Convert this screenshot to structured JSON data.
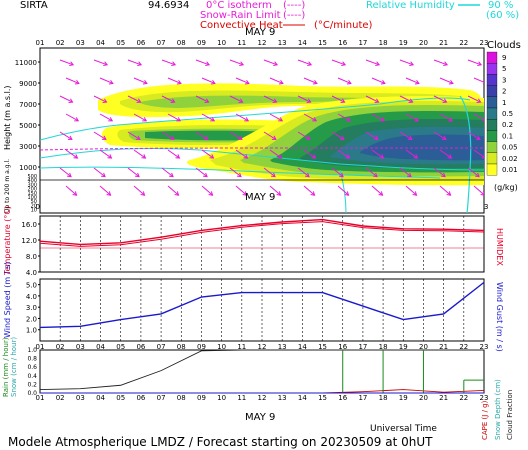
{
  "header": {
    "site": "SIRTA",
    "coord": "94.6934",
    "legend_isotherm": "0°C isotherm",
    "legend_isotherm_sym": "(----)",
    "legend_snow": "Snow-Rain Limit",
    "legend_snow_sym": "(----)",
    "legend_conv": "Convective Heat",
    "legend_conv_sym": "(°C/minute)",
    "legend_rh": "Relative Humidity",
    "legend_rh_90": "90 %",
    "legend_rh_60": "(60 %)"
  },
  "hours": [
    "01",
    "02",
    "03",
    "04",
    "05",
    "06",
    "07",
    "08",
    "09",
    "10",
    "11",
    "12",
    "13",
    "14",
    "15",
    "16",
    "17",
    "18",
    "19",
    "20",
    "21",
    "22",
    "23"
  ],
  "date_label": "MAY 9",
  "footer": {
    "time_axis": "Universal Time",
    "title": "Modele Atmospherique LMDZ / Forecast starting on 20230509 at 0hUT"
  },
  "colors": {
    "temperature": "#e8002a",
    "humidex": "#e8002a",
    "wind": "#1a1acc",
    "rain": "#1a8a1a",
    "snow": "#2aa7a7",
    "cloud_fraction": "#222222",
    "cape": "#cc0000",
    "snow_depth": "#2aa7a7",
    "humidity": "#21d7d7",
    "isotherm": "#e81bd9"
  },
  "colorbar": {
    "title": "Clouds",
    "unit": "(g/kg)",
    "levels": [
      "9",
      "5",
      "3",
      "2",
      "1",
      "0.5",
      "0.2",
      "0.1",
      "0.05",
      "0.02",
      "0.01"
    ],
    "colors": [
      "#dd11dd",
      "#9a33ee",
      "#5533cc",
      "#3b3fa8",
      "#2b5e96",
      "#2a7a8a",
      "#237d5e",
      "#259a49",
      "#8fd23b",
      "#d8ea20",
      "#ffff22"
    ]
  },
  "chart_data": [
    {
      "type": "heatmap",
      "title": "Clouds",
      "ylabel": "Height (m a.s.l.)",
      "ylabel2": "Up to 200 m a.g.l.",
      "y_ticks_upper": [
        "11000",
        "9000",
        "7000",
        "5000",
        "3000",
        "1000"
      ],
      "y_ticks_lower": [
        "500",
        "400",
        "300",
        "200",
        "150",
        "100",
        "50",
        "20",
        "10"
      ],
      "x": "hours",
      "cloud_layers": [
        {
          "name": "mid-level layer",
          "x_start": 4,
          "x_end": 22,
          "base_m": 3500,
          "top_m": 8500,
          "max_level_gkg": 0.5
        },
        {
          "name": "low-level layer",
          "x_start": 8,
          "x_end": 23,
          "base_m": 500,
          "top_m": 4500,
          "max_level_gkg": 2
        }
      ],
      "isotherm_0C_m": 2800
    },
    {
      "type": "line",
      "ylabel": "Temperature (°C)",
      "ylabel_right": "HUMIDEX",
      "y_ticks": [
        "16.0",
        "12.0",
        "8.0",
        "4.0"
      ],
      "ylim": [
        4,
        18
      ],
      "x": [
        1,
        3,
        5,
        7,
        9,
        11,
        13,
        15,
        17,
        19,
        21,
        23
      ],
      "series": [
        {
          "name": "Temperature",
          "values": [
            11.7,
            10.9,
            11.3,
            12.7,
            14.4,
            15.6,
            16.5,
            17.1,
            15.5,
            14.8,
            14.7,
            14.4
          ]
        },
        {
          "name": "HUMIDEX",
          "values": [
            11.2,
            10.4,
            10.8,
            12.2,
            13.9,
            15.2,
            16.1,
            16.6,
            15.1,
            14.4,
            14.3,
            14.0
          ]
        }
      ],
      "reference_line": 10
    },
    {
      "type": "line",
      "ylabel": "Wind Speed (m / s)",
      "ylabel_right": "Wind Gust (m / s)",
      "y_ticks": [
        "5.0",
        "4.0",
        "3.0",
        "2.0",
        "1.0"
      ],
      "ylim": [
        0,
        5.5
      ],
      "x": [
        1,
        3,
        5,
        7,
        9,
        11,
        13,
        15,
        17,
        19,
        21,
        23
      ],
      "series": [
        {
          "name": "Wind Speed",
          "values": [
            1.2,
            1.3,
            1.9,
            2.4,
            3.9,
            4.3,
            4.3,
            4.3,
            3.1,
            1.9,
            2.4,
            5.2
          ]
        }
      ]
    },
    {
      "type": "line",
      "ylabel": "Rain (mm / hour)",
      "ylabel2": "Snow (cm / hour)",
      "ylabel_right": "CAPE (J / g)",
      "ylabel_right2": "Snow Depth (cm)",
      "ylabel_right3": "Cloud Fraction",
      "y_ticks": [
        "1.0",
        "0.8",
        "0.6",
        "0.4",
        "0.2",
        "0.0"
      ],
      "ylim": [
        0,
        1
      ],
      "x": [
        1,
        3,
        5,
        7,
        9,
        11,
        13,
        15,
        17,
        19,
        21,
        23
      ],
      "series": [
        {
          "name": "Cloud Fraction",
          "values": [
            0.08,
            0.1,
            0.18,
            0.52,
            0.98,
            1.0,
            1.0,
            1.0,
            1.0,
            1.0,
            1.0,
            1.0
          ]
        },
        {
          "name": "CAPE",
          "values": [
            0,
            0,
            0,
            0,
            0,
            0,
            0,
            0,
            0.03,
            0.08,
            0.02,
            0.06
          ]
        }
      ],
      "rain_spikes": [
        {
          "x": 16,
          "v": 1.0
        },
        {
          "x": 18,
          "v": 1.0
        },
        {
          "x": 20,
          "v": 1.0
        },
        {
          "x": 22,
          "v": 0.3
        }
      ]
    }
  ]
}
